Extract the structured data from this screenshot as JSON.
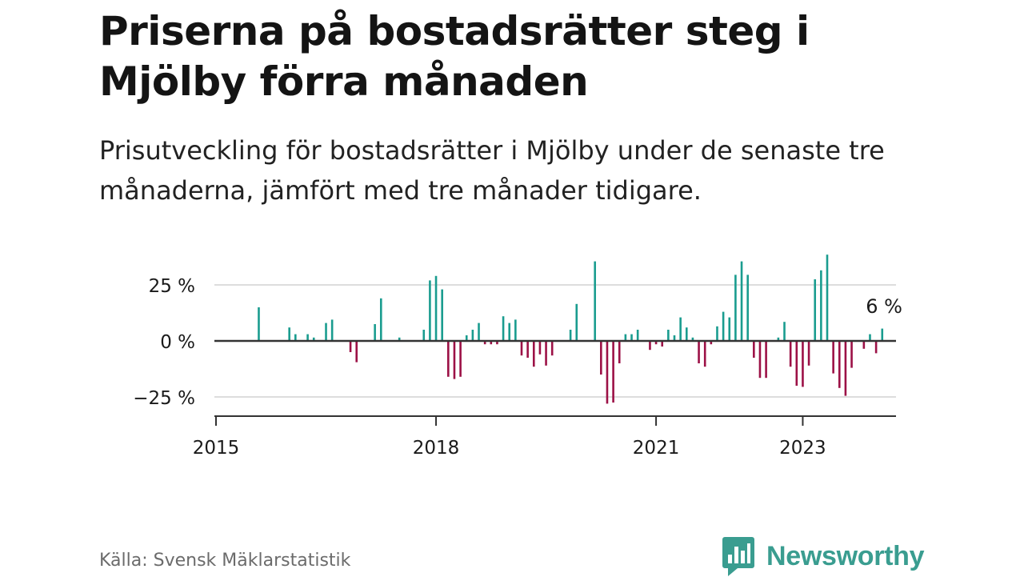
{
  "header": {
    "title": "Priserna på bostadsrätter steg i Mjölby förra månaden",
    "subtitle": "Prisutveckling för bostadsrätter i Mjölby under de senaste tre månaderna, jämfört med tre månader tidigare."
  },
  "footer": {
    "source": "Källa: Svensk Mäklarstatistik",
    "brand": "Newsworthy",
    "brand_icon": "bar-chart-speech-bubble-icon"
  },
  "colors": {
    "positive": "#1a9c8f",
    "negative": "#9c1146",
    "gridline": "#dddddd",
    "zero_line": "#333333",
    "axis": "#333333",
    "brand": "#3a9d90"
  },
  "chart_data": {
    "type": "bar",
    "x_unit": "month",
    "x_range": [
      "2015-01",
      "2024-04"
    ],
    "x_ticks": [
      {
        "label": "2015",
        "date": "2015-01"
      },
      {
        "label": "2018",
        "date": "2018-01"
      },
      {
        "label": "2021",
        "date": "2021-01"
      },
      {
        "label": "2023",
        "date": "2023-01"
      }
    ],
    "y_ticks": [
      {
        "label": "25 %",
        "value": 25
      },
      {
        "label": "0 %",
        "value": 0
      },
      {
        "label": "−25 %",
        "value": -25
      }
    ],
    "ylim": [
      -33,
      40
    ],
    "grid": true,
    "annotation": {
      "text": "6 %",
      "date": "2024-01"
    },
    "bars": [
      {
        "date": "2015-08",
        "value": 15
      },
      {
        "date": "2016-01",
        "value": 6
      },
      {
        "date": "2016-02",
        "value": 3
      },
      {
        "date": "2016-04",
        "value": 3
      },
      {
        "date": "2016-05",
        "value": 1.5
      },
      {
        "date": "2016-07",
        "value": 8
      },
      {
        "date": "2016-08",
        "value": 9.5
      },
      {
        "date": "2016-11",
        "value": -5
      },
      {
        "date": "2016-12",
        "value": -9.5
      },
      {
        "date": "2017-03",
        "value": 7.5
      },
      {
        "date": "2017-04",
        "value": 19
      },
      {
        "date": "2017-07",
        "value": 1.5
      },
      {
        "date": "2017-11",
        "value": 5
      },
      {
        "date": "2017-12",
        "value": 27
      },
      {
        "date": "2018-01",
        "value": 29
      },
      {
        "date": "2018-02",
        "value": 23
      },
      {
        "date": "2018-03",
        "value": -16
      },
      {
        "date": "2018-04",
        "value": -17
      },
      {
        "date": "2018-05",
        "value": -16
      },
      {
        "date": "2018-06",
        "value": 2.5
      },
      {
        "date": "2018-07",
        "value": 5
      },
      {
        "date": "2018-08",
        "value": 8
      },
      {
        "date": "2018-09",
        "value": -1.5
      },
      {
        "date": "2018-10",
        "value": -1.5
      },
      {
        "date": "2018-11",
        "value": -1.5
      },
      {
        "date": "2018-12",
        "value": 11
      },
      {
        "date": "2019-01",
        "value": 8
      },
      {
        "date": "2019-02",
        "value": 9.5
      },
      {
        "date": "2019-03",
        "value": -6.5
      },
      {
        "date": "2019-04",
        "value": -7.5
      },
      {
        "date": "2019-05",
        "value": -11.5
      },
      {
        "date": "2019-06",
        "value": -6
      },
      {
        "date": "2019-07",
        "value": -11
      },
      {
        "date": "2019-08",
        "value": -6.5
      },
      {
        "date": "2019-11",
        "value": 5
      },
      {
        "date": "2019-12",
        "value": 16.5
      },
      {
        "date": "2020-03",
        "value": 35.5
      },
      {
        "date": "2020-04",
        "value": -15
      },
      {
        "date": "2020-05",
        "value": -28
      },
      {
        "date": "2020-06",
        "value": -27.5
      },
      {
        "date": "2020-07",
        "value": -10
      },
      {
        "date": "2020-08",
        "value": 3
      },
      {
        "date": "2020-09",
        "value": 3
      },
      {
        "date": "2020-10",
        "value": 5
      },
      {
        "date": "2020-12",
        "value": -4
      },
      {
        "date": "2021-01",
        "value": -1.5
      },
      {
        "date": "2021-02",
        "value": -2.5
      },
      {
        "date": "2021-03",
        "value": 5
      },
      {
        "date": "2021-04",
        "value": 2.5
      },
      {
        "date": "2021-05",
        "value": 10.5
      },
      {
        "date": "2021-06",
        "value": 6
      },
      {
        "date": "2021-07",
        "value": 1.5
      },
      {
        "date": "2021-08",
        "value": -10
      },
      {
        "date": "2021-09",
        "value": -11.5
      },
      {
        "date": "2021-10",
        "value": -1.5
      },
      {
        "date": "2021-11",
        "value": 6.5
      },
      {
        "date": "2021-12",
        "value": 13
      },
      {
        "date": "2022-01",
        "value": 10.5
      },
      {
        "date": "2022-02",
        "value": 29.5
      },
      {
        "date": "2022-03",
        "value": 35.5
      },
      {
        "date": "2022-04",
        "value": 29.5
      },
      {
        "date": "2022-05",
        "value": -7.5
      },
      {
        "date": "2022-06",
        "value": -16.5
      },
      {
        "date": "2022-07",
        "value": -16.5
      },
      {
        "date": "2022-09",
        "value": 1.5
      },
      {
        "date": "2022-10",
        "value": 8.5
      },
      {
        "date": "2022-11",
        "value": -11.5
      },
      {
        "date": "2022-12",
        "value": -20
      },
      {
        "date": "2023-01",
        "value": -20.5
      },
      {
        "date": "2023-02",
        "value": -11
      },
      {
        "date": "2023-03",
        "value": 27.5
      },
      {
        "date": "2023-04",
        "value": 31.5
      },
      {
        "date": "2023-05",
        "value": 38.5
      },
      {
        "date": "2023-06",
        "value": -14.5
      },
      {
        "date": "2023-07",
        "value": -21
      },
      {
        "date": "2023-08",
        "value": -24.5
      },
      {
        "date": "2023-09",
        "value": -12
      },
      {
        "date": "2023-11",
        "value": -3.5
      },
      {
        "date": "2023-12",
        "value": 3
      },
      {
        "date": "2024-01",
        "value": -5.5
      },
      {
        "date": "2024-02",
        "value": 5.5
      }
    ]
  }
}
